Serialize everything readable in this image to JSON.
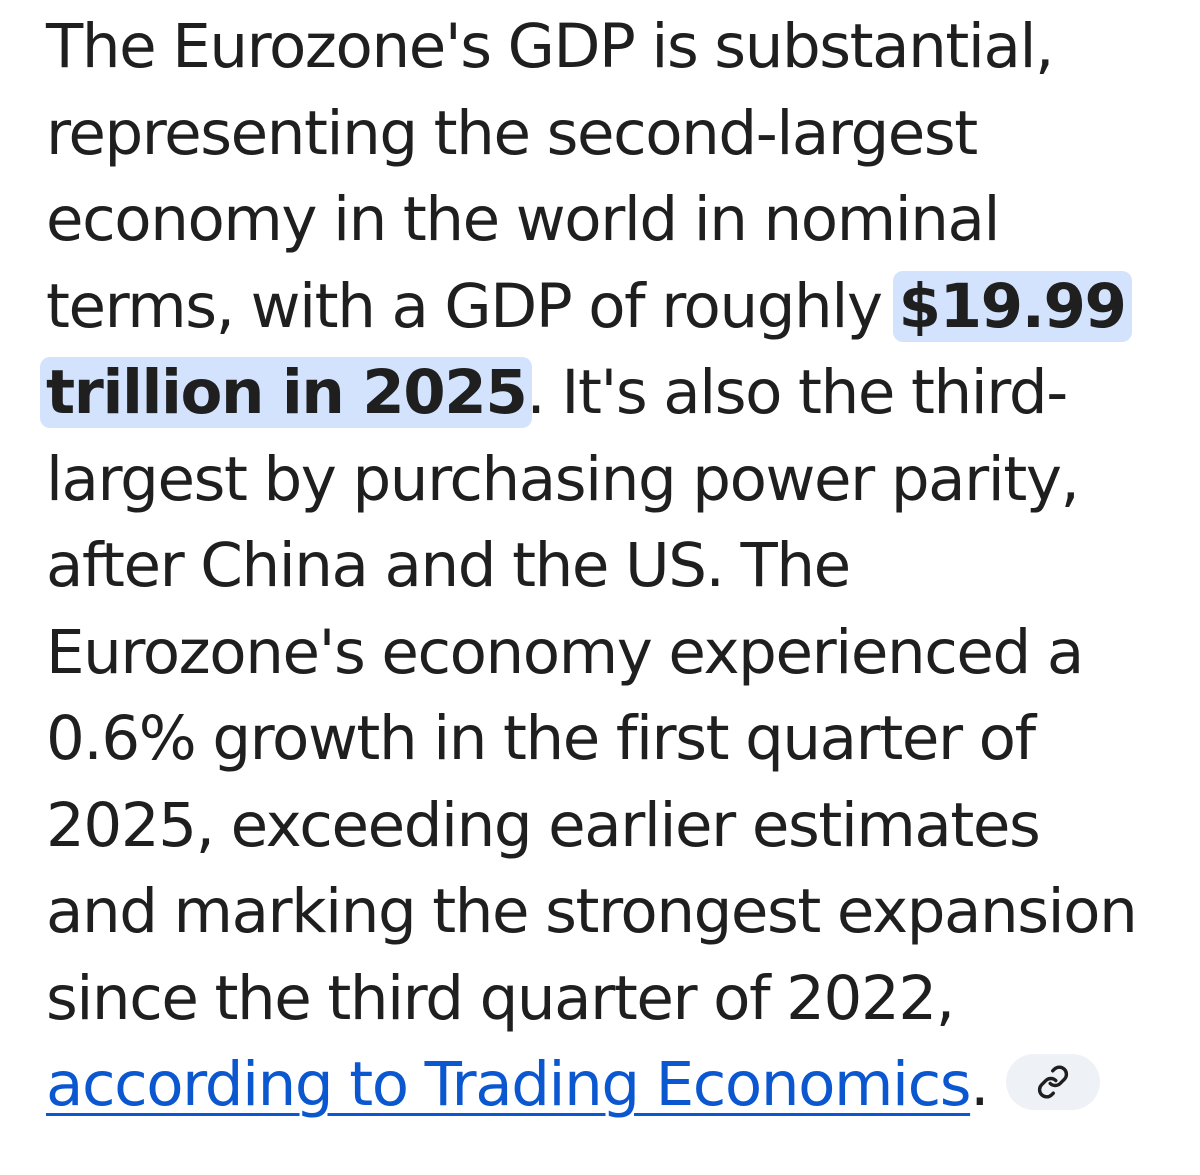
{
  "answer": {
    "text_before": "The Eurozone's GDP is substantial, representing the second-largest economy in the world in nominal terms, with a GDP of roughly ",
    "highlight": "$19.99 trillion in 2025",
    "text_after": ". It's also the third-largest by purchasing power parity, after China and the US. The Eurozone's economy experienced a 0.6% growth in the first quarter of 2025, exceeding earlier estimates and marking the strongest expansion since the third quarter of 2022, ",
    "link_text": "according to Trading Economics",
    "trailing": "."
  },
  "source_chip": {
    "icon": "link-icon"
  },
  "colors": {
    "text": "#1f1f1f",
    "highlight_bg": "#d3e3fd",
    "link": "#0b57d0",
    "chip_bg": "#eef1f6"
  }
}
